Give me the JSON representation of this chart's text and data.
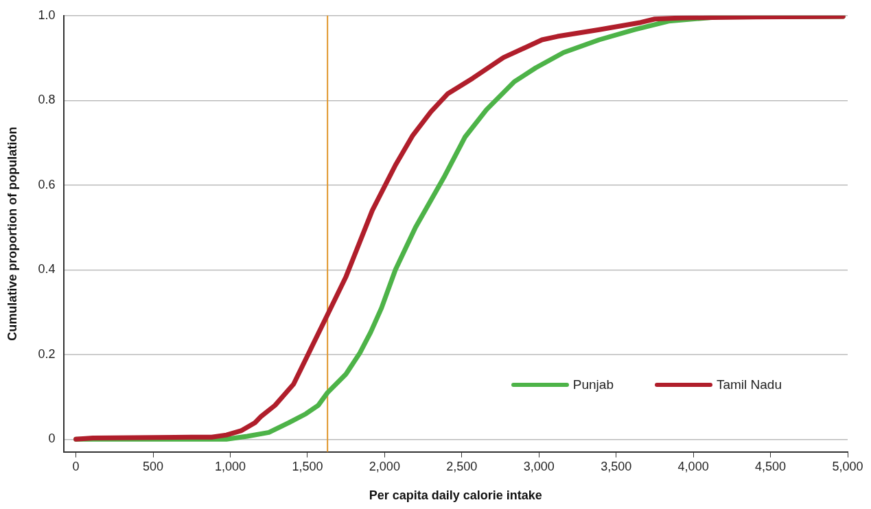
{
  "chart_data": {
    "type": "line",
    "xlabel": "Per capita daily calorie intake",
    "ylabel": "Cumulative proportion of population",
    "xlim": [
      -80,
      5000
    ],
    "ylim": [
      -0.03,
      1.0
    ],
    "xticks": [
      {
        "value": 0,
        "label": "0"
      },
      {
        "value": 500,
        "label": "500"
      },
      {
        "value": 1000,
        "label": "1,000"
      },
      {
        "value": 1500,
        "label": "1,500"
      },
      {
        "value": 2000,
        "label": "2,000"
      },
      {
        "value": 2500,
        "label": "2,500"
      },
      {
        "value": 3000,
        "label": "3,000"
      },
      {
        "value": 3500,
        "label": "3,500"
      },
      {
        "value": 4000,
        "label": "4,000"
      },
      {
        "value": 4500,
        "label": "4,500"
      },
      {
        "value": 5000,
        "label": "5,000"
      }
    ],
    "yticks": [
      0,
      0.2,
      0.4,
      0.6,
      0.8,
      {
        "value": 1.0,
        "label": "1.0"
      }
    ],
    "grid": "y",
    "legend": "bottom right",
    "marker": "none",
    "line_style": "solid",
    "ref_lines": [
      {
        "axis": "x",
        "value": 1630,
        "color": "#e0962a"
      }
    ],
    "series": [
      {
        "name": "Punjab",
        "color": "#4db348",
        "x": [
          0,
          500,
          975,
          1110,
          1250,
          1380,
          1490,
          1570,
          1630,
          1750,
          1840,
          1910,
          1980,
          2070,
          2200,
          2390,
          2520,
          2660,
          2840,
          2980,
          3160,
          3390,
          3620,
          3840,
          4160,
          4970
        ],
        "values": [
          0,
          0,
          0,
          0.007,
          0.016,
          0.039,
          0.06,
          0.08,
          0.11,
          0.154,
          0.204,
          0.253,
          0.31,
          0.4,
          0.5,
          0.622,
          0.713,
          0.778,
          0.844,
          0.877,
          0.913,
          0.943,
          0.967,
          0.987,
          0.997,
          0.998
        ]
      },
      {
        "name": "Tamil Nadu",
        "color": "#b01e2b",
        "x": [
          0,
          110,
          750,
          880,
          975,
          1070,
          1160,
          1200,
          1290,
          1410,
          1520,
          1630,
          1750,
          1920,
          2070,
          2180,
          2300,
          2410,
          2570,
          2770,
          3020,
          3120,
          3390,
          3660,
          3750,
          3930,
          4390,
          4970
        ],
        "values": [
          0,
          0.003,
          0.005,
          0.005,
          0.01,
          0.02,
          0.039,
          0.054,
          0.08,
          0.13,
          0.212,
          0.294,
          0.384,
          0.54,
          0.647,
          0.716,
          0.773,
          0.816,
          0.852,
          0.901,
          0.943,
          0.951,
          0.967,
          0.984,
          0.992,
          0.995,
          0.997,
          0.998
        ]
      }
    ]
  }
}
